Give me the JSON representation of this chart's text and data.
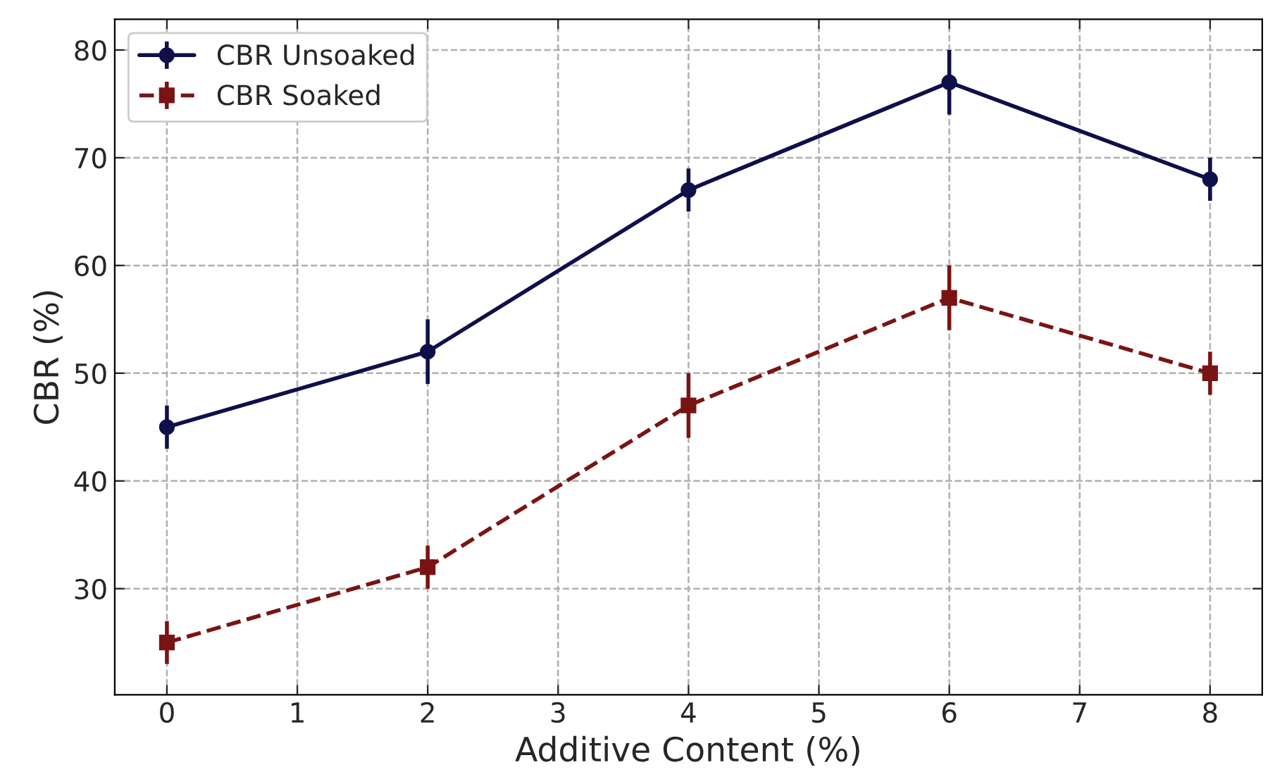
{
  "chart_data": {
    "type": "line",
    "xlabel": "Additive Content (%)",
    "ylabel": "CBR (%)",
    "x": [
      0,
      2,
      4,
      6,
      8
    ],
    "series": [
      {
        "name": "CBR Unsoaked",
        "color": "#0f0f4a",
        "values": [
          45,
          52,
          67,
          77,
          68
        ],
        "errors": [
          2,
          3,
          2,
          3,
          2
        ],
        "marker": "circle",
        "line_style": "solid"
      },
      {
        "name": "CBR Soaked",
        "color": "#7a1414",
        "values": [
          25,
          32,
          47,
          57,
          50
        ],
        "errors": [
          2,
          2,
          3,
          3,
          2
        ],
        "marker": "square",
        "line_style": "dashed"
      }
    ],
    "xlim": [
      -0.4,
      8.4
    ],
    "xticks": [
      0,
      1,
      2,
      3,
      4,
      5,
      6,
      7,
      8
    ],
    "ylim": [
      20.15,
      82.85
    ],
    "yticks": [
      30,
      40,
      50,
      60,
      70,
      80
    ],
    "grid": true,
    "legend": "top left"
  }
}
